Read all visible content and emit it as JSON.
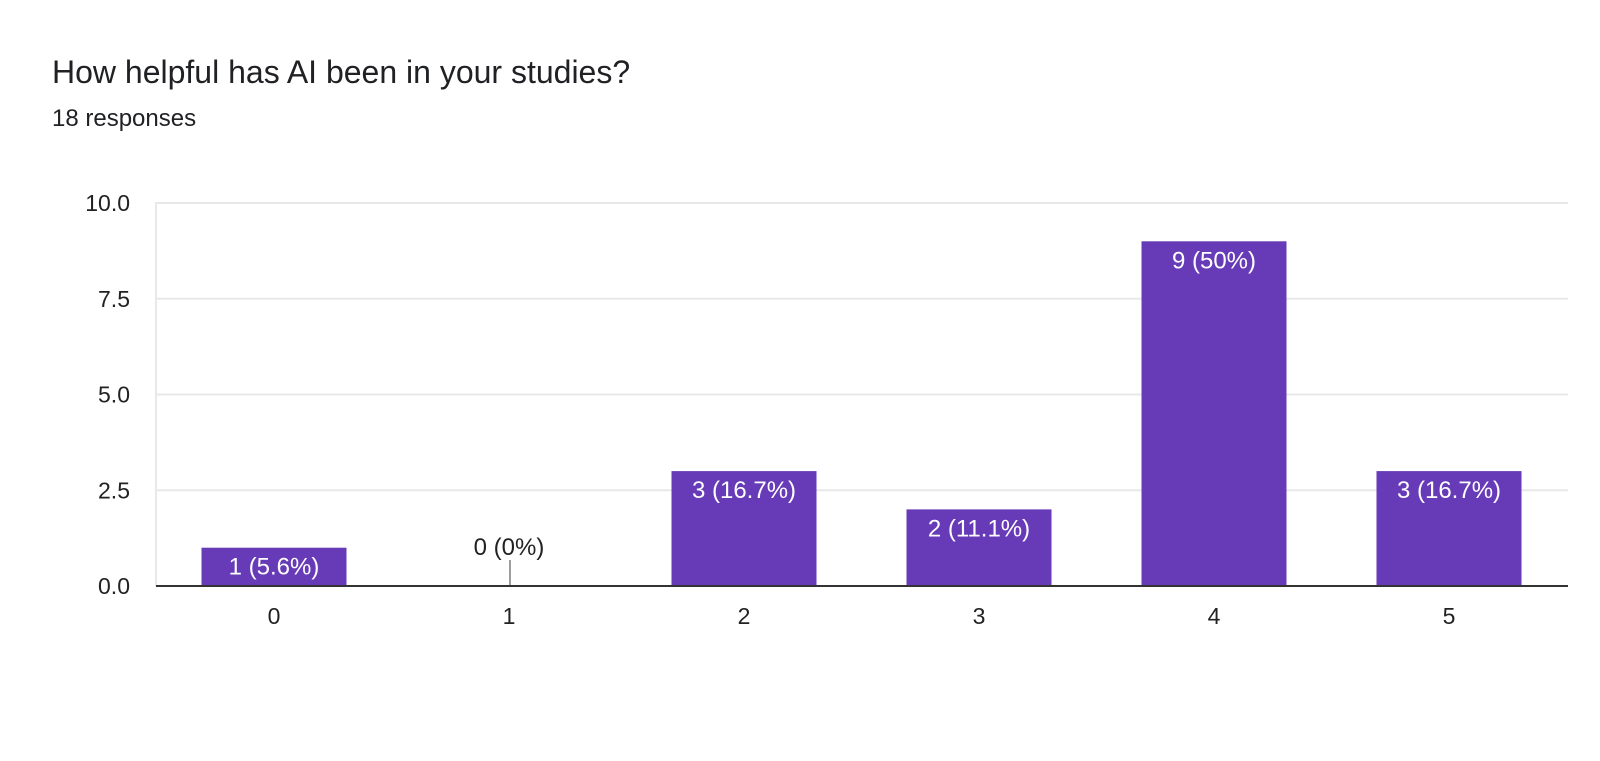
{
  "header": {
    "title": "How helpful has AI been in your studies?",
    "responses": "18 responses"
  },
  "chart_data": {
    "type": "bar",
    "categories": [
      "0",
      "1",
      "2",
      "3",
      "4",
      "5"
    ],
    "values": [
      1,
      0,
      3,
      2,
      9,
      3
    ],
    "data_labels": [
      "1 (5.6%)",
      "0 (0%)",
      "3 (16.7%)",
      "2 (11.1%)",
      "9 (50%)",
      "3 (16.7%)"
    ],
    "ylim": [
      0,
      10
    ],
    "yticks": [
      "0.0",
      "2.5",
      "5.0",
      "7.5",
      "10.0"
    ],
    "title": "How helpful has AI been in your studies?",
    "xlabel": "",
    "ylabel": "",
    "grid": true,
    "legend": "none",
    "colors": {
      "bar": "#673ab7",
      "label_inside": "#ffffff",
      "label_outside": "#222222",
      "grid": "#e8e8e8",
      "axis": "#333333",
      "zero_marker": "#9e9e9e"
    }
  }
}
